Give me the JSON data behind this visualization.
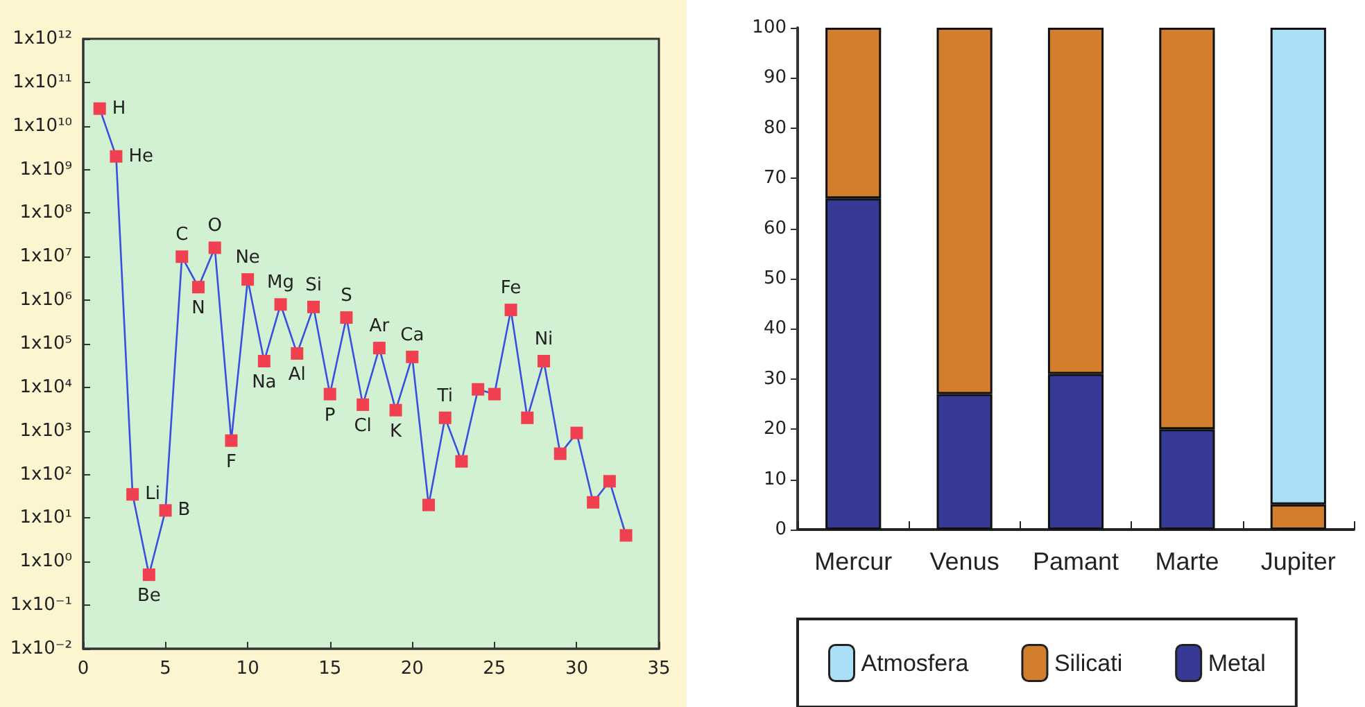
{
  "chart_data": [
    {
      "type": "line",
      "x": [
        1,
        2,
        3,
        4,
        5,
        6,
        7,
        8,
        9,
        10,
        11,
        12,
        13,
        14,
        15,
        16,
        17,
        18,
        19,
        20,
        21,
        22,
        23,
        24,
        25,
        26,
        27,
        28,
        29,
        30,
        31,
        32,
        33
      ],
      "series": [
        {
          "color": "#3a4fe0",
          "values": [
            25000000000.0,
            2000000000.0,
            35,
            0.5,
            15,
            10000000.0,
            2000000.0,
            16000000.0,
            600,
            3000000.0,
            40000.0,
            800000.0,
            60000.0,
            700000.0,
            7000.0,
            400000.0,
            4000.0,
            80000.0,
            3000.0,
            50000.0,
            20,
            2000.0,
            200,
            9000.0,
            7000.0,
            600000.0,
            2000.0,
            40000.0,
            300,
            900,
            23,
            70,
            4
          ]
        }
      ],
      "marker": "square",
      "log": "y",
      "grid": false,
      "xlim": [
        0,
        35
      ],
      "xticks": [
        0,
        5,
        10,
        15,
        20,
        25,
        30,
        35
      ],
      "ylim": [
        0.01,
        1000000000000.0
      ],
      "yticks": [
        {
          "value": 0.01,
          "label": "1x10⁻²"
        },
        {
          "value": 0.1,
          "label": "1x10⁻¹"
        },
        {
          "value": 1,
          "label": "1x10⁰"
        },
        {
          "value": 10,
          "label": "1x10¹"
        },
        {
          "value": 100,
          "label": "1x10²"
        },
        {
          "value": 1000,
          "label": "1x10³"
        },
        {
          "value": 10000.0,
          "label": "1x10⁴"
        },
        {
          "value": 100000.0,
          "label": "1x10⁵"
        },
        {
          "value": 1000000.0,
          "label": "1x10⁶"
        },
        {
          "value": 10000000.0,
          "label": "1x10⁷"
        },
        {
          "value": 100000000.0,
          "label": "1x10⁸"
        },
        {
          "value": 1000000000.0,
          "label": "1x10⁹"
        },
        {
          "value": 10000000000.0,
          "label": "1x10¹⁰"
        },
        {
          "value": 100000000000.0,
          "label": "1x10¹¹"
        },
        {
          "value": 1000000000000.0,
          "label": "1x10¹²"
        }
      ],
      "annotations": [
        {
          "text": "H",
          "x": 1,
          "y": 25000000000.0
        },
        {
          "text": "He",
          "x": 2,
          "y": 2000000000.0
        },
        {
          "text": "Li",
          "x": 3,
          "y": 35
        },
        {
          "text": "Be",
          "x": 4,
          "y": 0.5
        },
        {
          "text": "B",
          "x": 5,
          "y": 15
        },
        {
          "text": "C",
          "x": 6,
          "y": 10000000.0
        },
        {
          "text": "N",
          "x": 7,
          "y": 2000000.0
        },
        {
          "text": "O",
          "x": 8,
          "y": 16000000.0
        },
        {
          "text": "F",
          "x": 9,
          "y": 600
        },
        {
          "text": "Ne",
          "x": 10,
          "y": 3000000.0
        },
        {
          "text": "Na",
          "x": 11,
          "y": 40000.0
        },
        {
          "text": "Mg",
          "x": 12,
          "y": 800000.0
        },
        {
          "text": "Al",
          "x": 13,
          "y": 60000.0
        },
        {
          "text": "Si",
          "x": 14,
          "y": 700000.0
        },
        {
          "text": "P",
          "x": 15,
          "y": 7000.0
        },
        {
          "text": "S",
          "x": 16,
          "y": 400000.0
        },
        {
          "text": "Cl",
          "x": 17,
          "y": 4000.0
        },
        {
          "text": "Ar",
          "x": 18,
          "y": 80000.0
        },
        {
          "text": "K",
          "x": 19,
          "y": 3000.0
        },
        {
          "text": "Ca",
          "x": 20,
          "y": 50000.0
        },
        {
          "text": "Ti",
          "x": 22,
          "y": 2000.0
        },
        {
          "text": "Fe",
          "x": 26,
          "y": 600000.0
        },
        {
          "text": "Ni",
          "x": 28,
          "y": 40000.0
        }
      ]
    },
    {
      "type": "bar",
      "stacked": true,
      "categories": [
        "Mercur",
        "Venus",
        "Pamant",
        "Marte",
        "Jupiter"
      ],
      "series": [
        {
          "name": "Metal",
          "color": "#363a94",
          "values": [
            66,
            27,
            31,
            20,
            null
          ]
        },
        {
          "name": "Silicati",
          "color": "#d27e2c",
          "values": [
            34,
            73,
            69,
            80,
            5
          ]
        },
        {
          "name": "Atmosfera",
          "color": "#aadff7",
          "values": [
            null,
            null,
            null,
            null,
            95
          ]
        }
      ],
      "ylim": [
        0,
        100
      ],
      "yticks": [
        0,
        10,
        20,
        30,
        40,
        50,
        60,
        70,
        80,
        90,
        100
      ],
      "grid": false,
      "legend": "bottom"
    }
  ]
}
